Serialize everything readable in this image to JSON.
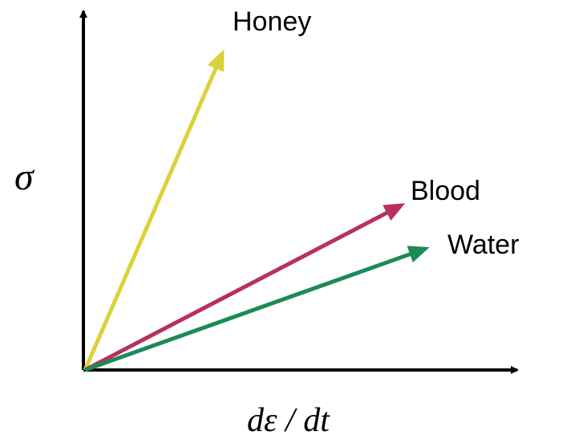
{
  "diagram": {
    "y_axis_label": "σ",
    "x_axis_label": "dε / dt",
    "lines": [
      {
        "label": "Honey",
        "color": "#d9d23b"
      },
      {
        "label": "Blood",
        "color": "#b8305f"
      },
      {
        "label": "Water",
        "color": "#1c8a57"
      }
    ],
    "axis_color": "#000000"
  }
}
